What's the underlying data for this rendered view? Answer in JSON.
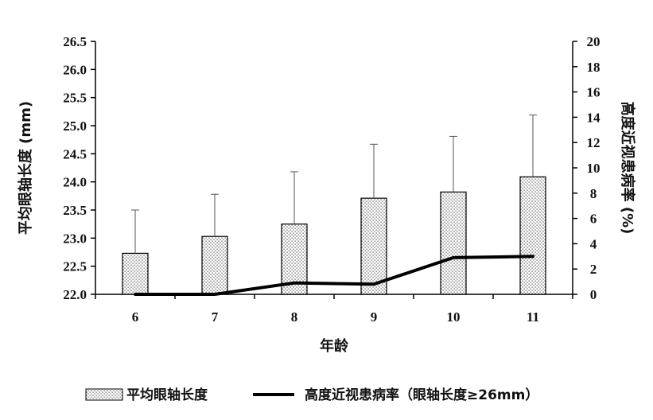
{
  "chart_data": {
    "type": "bar",
    "categories": [
      "6",
      "7",
      "8",
      "9",
      "10",
      "11"
    ],
    "xlabel": "年龄",
    "ylabel": "平均眼轴长度 (mm)",
    "y2label": "高度近视患病率 (%)",
    "ylim": [
      22.0,
      26.5
    ],
    "y2lim": [
      0,
      20
    ],
    "yticks": [
      "22.0",
      "22.5",
      "23.0",
      "23.5",
      "24.0",
      "24.5",
      "25.0",
      "25.5",
      "26.0",
      "26.5"
    ],
    "y2ticks": [
      "0",
      "2",
      "4",
      "6",
      "8",
      "10",
      "12",
      "14",
      "16",
      "18",
      "20"
    ],
    "grid": false,
    "legend_position": "bottom",
    "series": [
      {
        "name": "平均眼轴长度",
        "kind": "bar",
        "axis": "left",
        "values": [
          22.73,
          23.03,
          23.25,
          23.71,
          23.82,
          24.09
        ],
        "error_upper": [
          0.77,
          0.75,
          0.93,
          0.96,
          0.99,
          1.1
        ],
        "pattern": "dotted",
        "color": "#000000"
      },
      {
        "name": "高度近视患病率（眼轴长度≥26mm）",
        "kind": "line",
        "axis": "right",
        "values": [
          0.0,
          0.0,
          0.9,
          0.8,
          2.9,
          3.0
        ],
        "color": "#000000"
      }
    ]
  }
}
